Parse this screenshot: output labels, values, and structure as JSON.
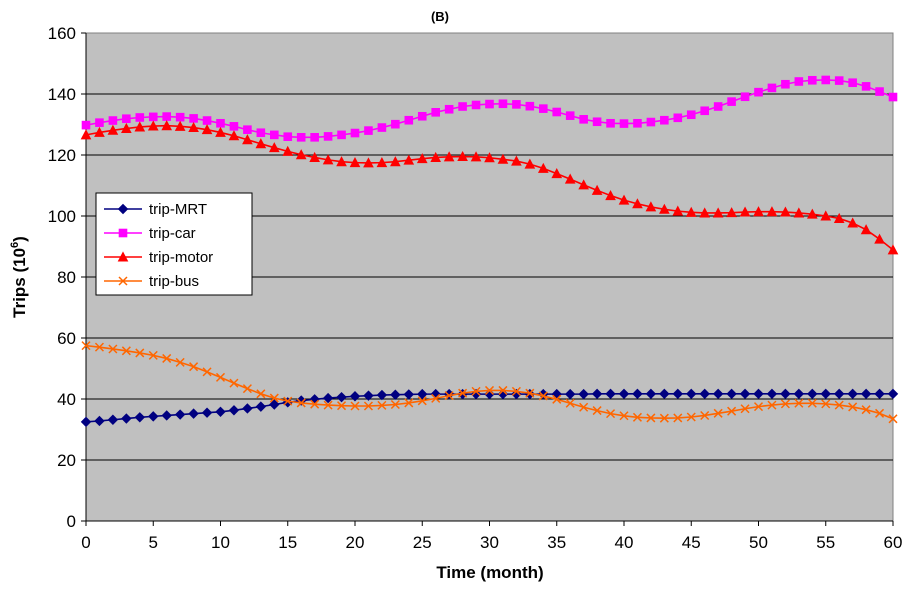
{
  "chart_data": {
    "type": "line",
    "title": "(B)",
    "xlabel": "Time (month)",
    "ylabel": "Trips (10",
    "ylabel_sup": "6",
    "ylabel_close": ")",
    "xlim": [
      0,
      60
    ],
    "ylim": [
      0,
      160
    ],
    "x_ticks": [
      "0",
      "5",
      "10",
      "15",
      "20",
      "25",
      "30",
      "35",
      "40",
      "45",
      "50",
      "55",
      "60"
    ],
    "y_ticks": [
      "0",
      "20",
      "40",
      "60",
      "80",
      "100",
      "120",
      "140",
      "160"
    ],
    "grid": "horizontal",
    "plot_background": "#c0c0c0",
    "legend_placement": "left-middle",
    "x": [
      0,
      1,
      2,
      3,
      4,
      5,
      6,
      7,
      8,
      9,
      10,
      11,
      12,
      13,
      14,
      15,
      16,
      17,
      18,
      19,
      20,
      21,
      22,
      23,
      24,
      25,
      26,
      27,
      28,
      29,
      30,
      31,
      32,
      33,
      34,
      35,
      36,
      37,
      38,
      39,
      40,
      41,
      42,
      43,
      44,
      45,
      46,
      47,
      48,
      49,
      50,
      51,
      52,
      53,
      54,
      55,
      56,
      57,
      58,
      59,
      60
    ],
    "series": [
      {
        "name": "trip-MRT",
        "color": "#000080",
        "marker": "diamond",
        "values": [
          32.5,
          32.8,
          33.2,
          33.6,
          34.0,
          34.3,
          34.6,
          34.9,
          35.2,
          35.5,
          35.8,
          36.3,
          36.9,
          37.5,
          38.2,
          38.9,
          39.5,
          39.9,
          40.3,
          40.6,
          40.9,
          41.1,
          41.3,
          41.4,
          41.5,
          41.6,
          41.6,
          41.6,
          41.6,
          41.6,
          41.6,
          41.6,
          41.6,
          41.6,
          41.6,
          41.6,
          41.6,
          41.6,
          41.7,
          41.7,
          41.7,
          41.7,
          41.7,
          41.7,
          41.7,
          41.7,
          41.7,
          41.7,
          41.7,
          41.7,
          41.7,
          41.7,
          41.7,
          41.7,
          41.7,
          41.7,
          41.7,
          41.7,
          41.7,
          41.7,
          41.7
        ]
      },
      {
        "name": "trip-car",
        "color": "#ff00ff",
        "marker": "square",
        "values": [
          129.8,
          130.6,
          131.3,
          131.9,
          132.3,
          132.5,
          132.6,
          132.4,
          132.0,
          131.3,
          130.4,
          129.4,
          128.3,
          127.3,
          126.6,
          126.0,
          125.8,
          125.8,
          126.1,
          126.6,
          127.2,
          128.0,
          129.0,
          130.1,
          131.4,
          132.7,
          134.0,
          135.0,
          135.9,
          136.4,
          136.7,
          136.8,
          136.6,
          136.0,
          135.2,
          134.1,
          132.9,
          131.7,
          130.9,
          130.4,
          130.3,
          130.4,
          130.8,
          131.4,
          132.2,
          133.2,
          134.5,
          135.9,
          137.5,
          139.1,
          140.6,
          142.0,
          143.2,
          144.1,
          144.5,
          144.6,
          144.4,
          143.7,
          142.5,
          140.8,
          139.0
        ]
      },
      {
        "name": "trip-motor",
        "color": "#ff0000",
        "marker": "triangle",
        "values": [
          126.6,
          127.4,
          128.1,
          128.7,
          129.2,
          129.5,
          129.6,
          129.4,
          129.0,
          128.3,
          127.4,
          126.3,
          125.0,
          123.7,
          122.4,
          121.2,
          120.1,
          119.2,
          118.4,
          117.8,
          117.5,
          117.4,
          117.5,
          117.8,
          118.3,
          118.8,
          119.2,
          119.4,
          119.5,
          119.4,
          119.1,
          118.6,
          118.0,
          117.0,
          115.6,
          113.9,
          112.1,
          110.2,
          108.4,
          106.7,
          105.2,
          104.0,
          103.0,
          102.2,
          101.6,
          101.2,
          101.0,
          101.0,
          101.1,
          101.3,
          101.4,
          101.4,
          101.3,
          101.0,
          100.6,
          100.0,
          99.2,
          97.7,
          95.5,
          92.4,
          88.9
        ]
      },
      {
        "name": "trip-bus",
        "color": "#ff6600",
        "marker": "x",
        "values": [
          57.5,
          57.0,
          56.4,
          55.8,
          55.1,
          54.3,
          53.3,
          52.0,
          50.6,
          48.9,
          47.1,
          45.2,
          43.4,
          41.7,
          40.3,
          39.3,
          38.7,
          38.3,
          38.0,
          37.8,
          37.7,
          37.7,
          37.9,
          38.2,
          38.7,
          39.4,
          40.2,
          41.1,
          41.9,
          42.5,
          42.8,
          42.8,
          42.5,
          41.9,
          41.0,
          39.9,
          38.6,
          37.3,
          36.2,
          35.2,
          34.5,
          34.0,
          33.8,
          33.7,
          33.8,
          34.1,
          34.6,
          35.3,
          36.0,
          36.8,
          37.5,
          38.0,
          38.4,
          38.6,
          38.6,
          38.4,
          38.0,
          37.4,
          36.5,
          35.3,
          33.5
        ]
      }
    ]
  }
}
